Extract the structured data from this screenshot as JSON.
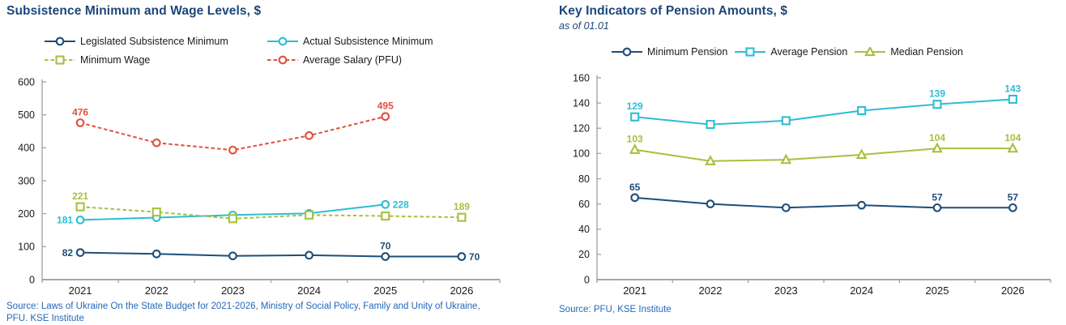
{
  "page": {
    "background": "#FFFFFF"
  },
  "colors": {
    "navy": "#1F4E79",
    "cyan": "#2EBDD4",
    "green": "#A5C13F",
    "red": "#E0503C",
    "title_text": "#1C4679",
    "source_text": "#2368B8",
    "axis_line": "#A6A6A6",
    "tick_text": "#1A1A1A"
  },
  "chart_data": [
    {
      "id": "wages",
      "type": "line",
      "title": "Subsistence Minimum and Wage Levels, $",
      "subtitle": "",
      "source": "Source: Laws of Ukraine On the State Budget for 2021-2026, Ministry of Social Policy, Family and Unity of Ukraine, PFU. KSE Institute",
      "categories": [
        "2021",
        "2022",
        "2023",
        "2024",
        "2025",
        "2026"
      ],
      "ylim": [
        0,
        600
      ],
      "ytick_step": 100,
      "grid": false,
      "legend_position": "top",
      "legend_layout": "two-column",
      "series": [
        {
          "name": "Legislated Subsistence Minimum",
          "color_key": "navy",
          "dash": false,
          "marker": "circle",
          "values": [
            82,
            78,
            72,
            74,
            70,
            70
          ],
          "point_labels": [
            {
              "i": 0,
              "text": "82",
              "pos": "left"
            },
            {
              "i": 4,
              "text": "70",
              "pos": "above"
            },
            {
              "i": 5,
              "text": "70",
              "pos": "right"
            }
          ]
        },
        {
          "name": "Actual Subsistence Minimum",
          "color_key": "cyan",
          "dash": false,
          "marker": "circle",
          "values": [
            181,
            188,
            196,
            201,
            228,
            null
          ],
          "point_labels": [
            {
              "i": 0,
              "text": "181",
              "pos": "left"
            },
            {
              "i": 4,
              "text": "228",
              "pos": "right"
            }
          ]
        },
        {
          "name": "Minimum Wage",
          "color_key": "green",
          "dash": true,
          "marker": "square",
          "values": [
            221,
            205,
            185,
            196,
            193,
            189
          ],
          "point_labels": [
            {
              "i": 0,
              "text": "221",
              "pos": "above"
            },
            {
              "i": 5,
              "text": "189",
              "pos": "above"
            }
          ]
        },
        {
          "name": "Average Salary (PFU)",
          "color_key": "red",
          "dash": true,
          "marker": "circle",
          "values": [
            476,
            415,
            393,
            437,
            495,
            null
          ],
          "point_labels": [
            {
              "i": 0,
              "text": "476",
              "pos": "above"
            },
            {
              "i": 4,
              "text": "495",
              "pos": "above"
            }
          ]
        }
      ]
    },
    {
      "id": "pensions",
      "type": "line",
      "title": "Key Indicators of Pension Amounts, $",
      "subtitle": "as of 01.01",
      "source": "Source: PFU, KSE Institute",
      "categories": [
        "2021",
        "2022",
        "2023",
        "2024",
        "2025",
        "2026"
      ],
      "ylim": [
        0,
        160
      ],
      "ytick_step": 20,
      "grid": false,
      "legend_position": "top",
      "legend_layout": "single-row",
      "series": [
        {
          "name": "Minimum Pension",
          "color_key": "navy",
          "dash": false,
          "marker": "circle",
          "values": [
            65,
            60,
            57,
            59,
            57,
            57
          ],
          "point_labels": [
            {
              "i": 0,
              "text": "65",
              "pos": "above"
            },
            {
              "i": 4,
              "text": "57",
              "pos": "above"
            },
            {
              "i": 5,
              "text": "57",
              "pos": "above"
            }
          ]
        },
        {
          "name": "Average Pension",
          "color_key": "cyan",
          "dash": false,
          "marker": "square",
          "values": [
            129,
            123,
            126,
            134,
            139,
            143
          ],
          "point_labels": [
            {
              "i": 0,
              "text": "129",
              "pos": "above"
            },
            {
              "i": 4,
              "text": "139",
              "pos": "above"
            },
            {
              "i": 5,
              "text": "143",
              "pos": "above"
            }
          ]
        },
        {
          "name": "Median Pension",
          "color_key": "green",
          "dash": false,
          "marker": "triangle",
          "values": [
            103,
            94,
            95,
            99,
            104,
            104
          ],
          "point_labels": [
            {
              "i": 0,
              "text": "103",
              "pos": "above"
            },
            {
              "i": 4,
              "text": "104",
              "pos": "above"
            },
            {
              "i": 5,
              "text": "104",
              "pos": "above"
            }
          ]
        }
      ]
    }
  ]
}
